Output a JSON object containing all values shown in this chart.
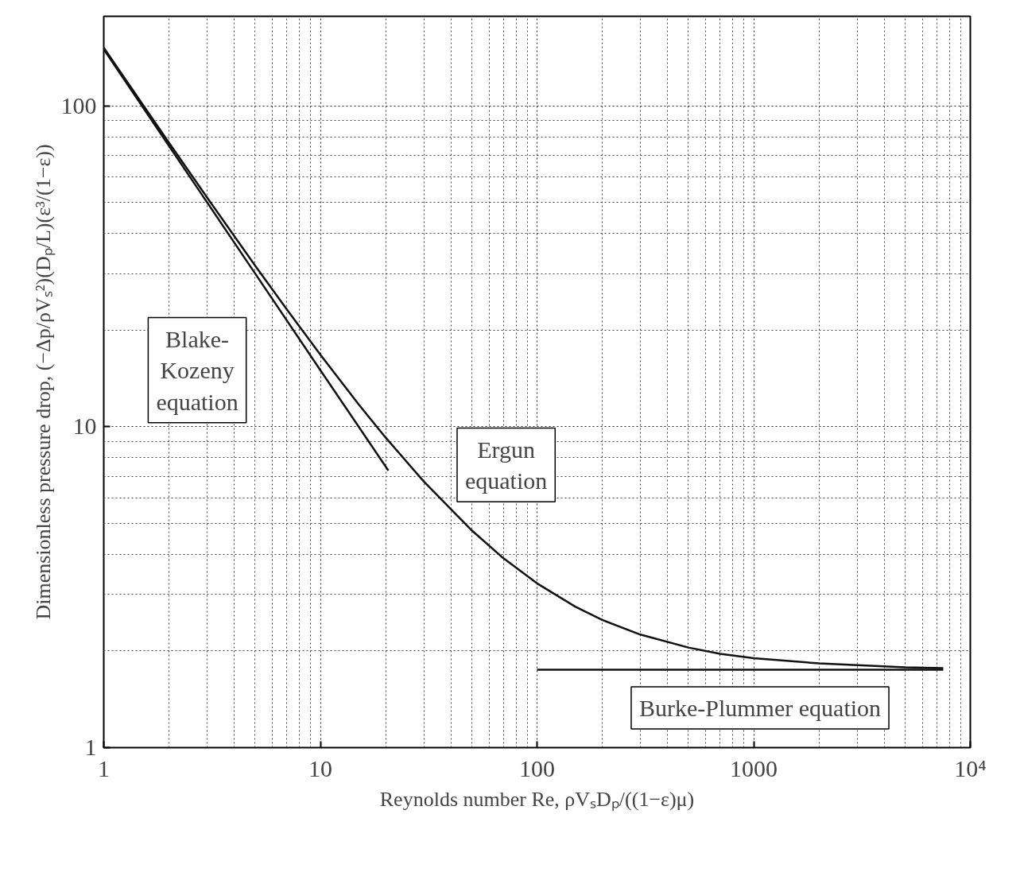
{
  "chart_data": {
    "type": "line",
    "xlabel": "Reynolds number Re, ρVₛDₚ/((1−ε)μ)",
    "ylabel": "Dimensionless pressure drop, (−Δp/ρVₛ²)(Dₚ/L)(ε³/(1−ε))",
    "log": "xy",
    "xlim": [
      1,
      10000
    ],
    "ylim": [
      1,
      190
    ],
    "xticks": [
      1,
      10,
      100,
      1000,
      {
        "value": 10000,
        "label": "10⁴"
      }
    ],
    "yticks": [
      1,
      10,
      100
    ],
    "grid": true,
    "marker": "none",
    "line_style": "solid",
    "series": [
      {
        "name": "Blake-\nKozeny\nequation",
        "color": "#111111",
        "x": [
          1,
          2,
          5,
          10,
          20.6
        ],
        "values": [
          150,
          75,
          30,
          15,
          7.3
        ]
      },
      {
        "name": "Ergun\nequation",
        "color": "#111111",
        "x": [
          1,
          1.5,
          2,
          3,
          5,
          7,
          10,
          15,
          20,
          30,
          50,
          70,
          100,
          150,
          200,
          300,
          500,
          700,
          1000,
          2000,
          5000,
          7500
        ],
        "values": [
          151.75,
          101.75,
          76.75,
          51.75,
          31.75,
          23.2,
          16.75,
          11.75,
          9.25,
          6.75,
          4.75,
          3.89,
          3.25,
          2.75,
          2.5,
          2.25,
          2.05,
          1.96,
          1.9,
          1.83,
          1.78,
          1.77
        ]
      },
      {
        "name": "Burke-Plummer equation",
        "color": "#111111",
        "x": [
          100,
          7500
        ],
        "values": [
          1.75,
          1.75
        ]
      }
    ]
  }
}
